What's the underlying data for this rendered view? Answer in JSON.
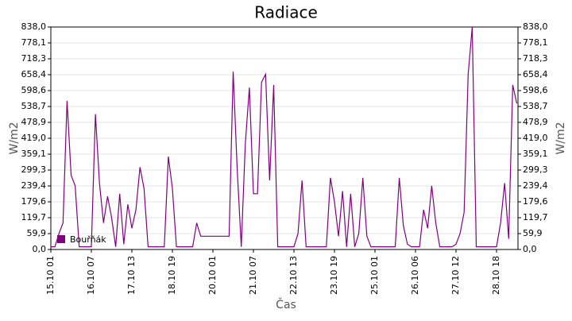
{
  "chart_data": {
    "type": "line",
    "title": "Radiace",
    "x_label": "Čas",
    "y_label": "W/m2",
    "y2_label": "W/m2",
    "categories": [
      "15.10 01",
      null,
      null,
      null,
      null,
      null,
      null,
      null,
      null,
      null,
      "16.10 07",
      null,
      null,
      null,
      null,
      null,
      null,
      null,
      null,
      null,
      "17.10 13",
      null,
      null,
      null,
      null,
      null,
      null,
      null,
      null,
      null,
      "18.10 19",
      null,
      null,
      null,
      null,
      null,
      null,
      null,
      null,
      null,
      "20.10 01",
      null,
      null,
      null,
      null,
      null,
      null,
      null,
      null,
      null,
      "21.10 07",
      null,
      null,
      null,
      null,
      null,
      null,
      null,
      null,
      null,
      "22.10 13",
      null,
      null,
      null,
      null,
      null,
      null,
      null,
      null,
      null,
      "23.10 19",
      null,
      null,
      null,
      null,
      null,
      null,
      null,
      null,
      null,
      "25.10 01",
      null,
      null,
      null,
      null,
      null,
      null,
      null,
      null,
      null,
      "26.10 06",
      null,
      null,
      null,
      null,
      null,
      null,
      null,
      null,
      null,
      "27.10 12",
      null,
      null,
      null,
      null,
      null,
      null,
      null,
      null,
      null,
      "28.10 18",
      null,
      null,
      null,
      null,
      null
    ],
    "series": [
      {
        "name": "Bouřňák",
        "color": "#800080",
        "values": [
          10,
          10,
          60,
          100,
          560,
          280,
          240,
          10,
          10,
          10,
          10,
          510,
          250,
          100,
          200,
          120,
          10,
          210,
          20,
          170,
          80,
          150,
          310,
          230,
          10,
          10,
          10,
          10,
          10,
          350,
          230,
          10,
          10,
          10,
          10,
          10,
          100,
          50,
          50,
          50,
          50,
          50,
          50,
          50,
          50,
          670,
          300,
          10,
          400,
          610,
          210,
          210,
          630,
          660,
          260,
          620,
          10,
          10,
          10,
          10,
          10,
          60,
          260,
          10,
          10,
          10,
          10,
          10,
          10,
          270,
          180,
          50,
          220,
          10,
          210,
          10,
          60,
          270,
          50,
          10,
          10,
          10,
          10,
          10,
          10,
          10,
          270,
          90,
          20,
          10,
          10,
          10,
          150,
          80,
          240,
          100,
          10,
          10,
          10,
          10,
          20,
          60,
          140,
          660,
          838,
          10,
          10,
          10,
          10,
          10,
          10,
          100,
          250,
          40,
          620,
          550
        ]
      }
    ],
    "ylim": [
      0,
      838
    ],
    "yticks": [
      {
        "value": 0,
        "label": "0,0"
      },
      {
        "value": 59.9,
        "label": "59,9"
      },
      {
        "value": 119.7,
        "label": "119,7"
      },
      {
        "value": 179.6,
        "label": "179,6"
      },
      {
        "value": 239.4,
        "label": "239,4"
      },
      {
        "value": 299.3,
        "label": "299,3"
      },
      {
        "value": 359.1,
        "label": "359,1"
      },
      {
        "value": 419.0,
        "label": "419,0"
      },
      {
        "value": 478.9,
        "label": "478,9"
      },
      {
        "value": 538.7,
        "label": "538,7"
      },
      {
        "value": 598.6,
        "label": "598,6"
      },
      {
        "value": 658.4,
        "label": "658,4"
      },
      {
        "value": 718.3,
        "label": "718,3"
      },
      {
        "value": 778.1,
        "label": "778,1"
      },
      {
        "value": 838.0,
        "label": "838,0"
      }
    ],
    "grid": true
  }
}
